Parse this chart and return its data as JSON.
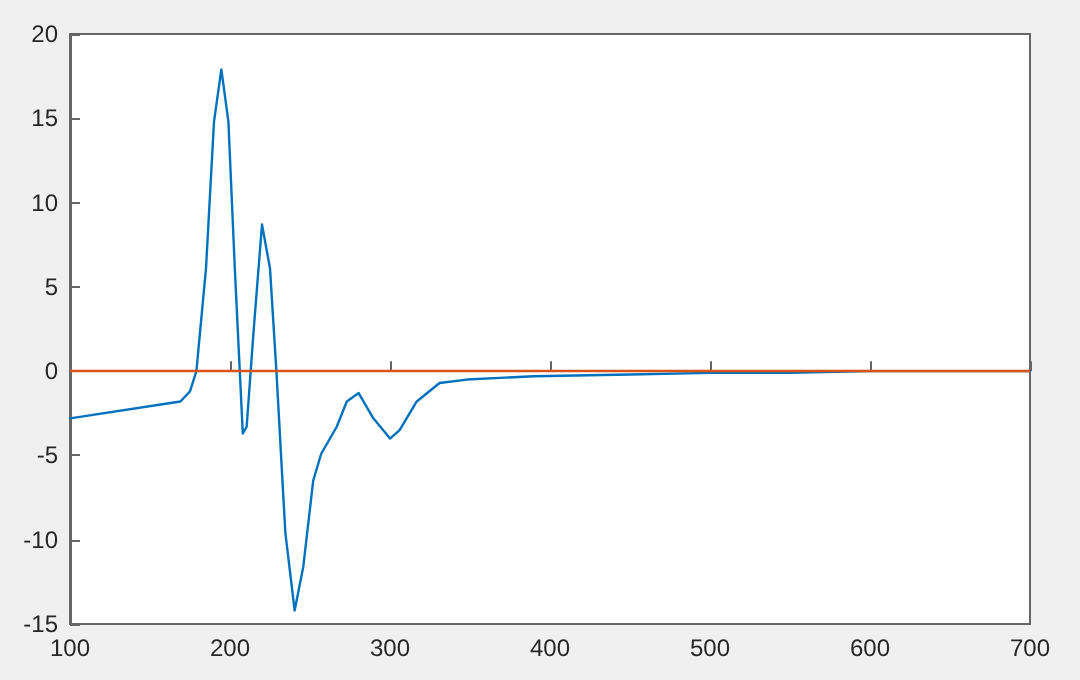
{
  "chart_data": {
    "type": "line",
    "xlim": [
      100,
      700
    ],
    "ylim": [
      -15,
      20
    ],
    "xticks": [
      100,
      200,
      300,
      400,
      500,
      600,
      700
    ],
    "yticks": [
      -15,
      -10,
      -5,
      0,
      5,
      10,
      15,
      20
    ],
    "marker": "none",
    "line_style": "solid",
    "ref_lines": [
      {
        "axis": "y",
        "value": 0,
        "color": "#d95319"
      }
    ],
    "series": [
      {
        "color": "#0072bd",
        "x": [
          100,
          169,
          175,
          179,
          185,
          190,
          194.6,
          199,
          203,
          208,
          210.4,
          214.6,
          220,
          225,
          229,
          234.6,
          240.4,
          245.8,
          252,
          257,
          266.7,
          273,
          280.4,
          289.6,
          300,
          306,
          316.7,
          331,
          348,
          390,
          450,
          500,
          550,
          600,
          650,
          700
        ],
        "values": [
          -2.8,
          -1.8,
          -1.2,
          0,
          6.1,
          14.8,
          17.9,
          14.8,
          6.1,
          -3.7,
          -3.3,
          2.2,
          8.7,
          6.1,
          0,
          -9.6,
          -14.2,
          -11.6,
          -6.5,
          -4.9,
          -3.3,
          -1.8,
          -1.3,
          -2.8,
          -4.0,
          -3.5,
          -1.8,
          -0.7,
          -0.5,
          -0.3,
          -0.2,
          -0.1,
          -0.1,
          0,
          0,
          0
        ]
      }
    ]
  }
}
